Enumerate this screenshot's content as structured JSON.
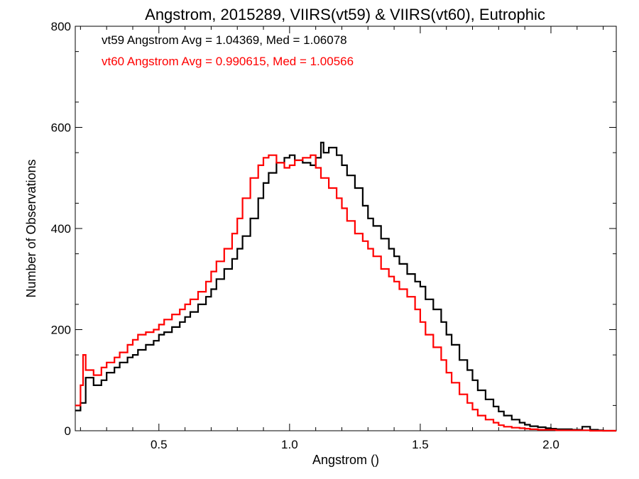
{
  "chart_data": {
    "type": "line",
    "title": "Angstrom, 2015289, VIIRS(vt59) & VIIRS(vt60), Eutrophic",
    "xlabel": "Angstrom ()",
    "ylabel": "Number of Observations",
    "xlim": [
      0.18,
      2.25
    ],
    "ylim": [
      0,
      800
    ],
    "xticks": [
      0.5,
      1.0,
      1.5,
      2.0
    ],
    "xtick_labels": [
      "0.5",
      "1.0",
      "1.5",
      "2.0"
    ],
    "yticks": [
      0,
      200,
      400,
      600,
      800
    ],
    "ytick_labels": [
      "0",
      "200",
      "400",
      "600",
      "800"
    ],
    "grid": false,
    "annotations": [
      {
        "text": "vt59 Angstrom Avg = 1.04369, Med = 1.06078",
        "color": "#000000"
      },
      {
        "text": "vt60 Angstrom Avg = 0.990615, Med = 1.00566",
        "color": "#ff0000"
      }
    ],
    "series": [
      {
        "color": "#000000",
        "x": [
          0.18,
          0.2,
          0.22,
          0.25,
          0.28,
          0.3,
          0.33,
          0.35,
          0.38,
          0.4,
          0.42,
          0.45,
          0.48,
          0.5,
          0.52,
          0.55,
          0.58,
          0.6,
          0.62,
          0.65,
          0.68,
          0.7,
          0.72,
          0.75,
          0.78,
          0.8,
          0.82,
          0.85,
          0.88,
          0.9,
          0.92,
          0.95,
          0.98,
          1.0,
          1.02,
          1.05,
          1.08,
          1.1,
          1.12,
          1.13,
          1.15,
          1.18,
          1.2,
          1.22,
          1.25,
          1.28,
          1.3,
          1.32,
          1.35,
          1.38,
          1.4,
          1.42,
          1.45,
          1.48,
          1.5,
          1.52,
          1.55,
          1.58,
          1.6,
          1.62,
          1.65,
          1.68,
          1.7,
          1.72,
          1.75,
          1.78,
          1.8,
          1.82,
          1.85,
          1.88,
          1.9,
          1.92,
          1.95,
          1.98,
          2.0,
          2.02,
          2.05,
          2.08,
          2.1,
          2.12,
          2.15,
          2.18,
          2.2,
          2.25
        ],
        "values": [
          40,
          55,
          105,
          90,
          100,
          115,
          125,
          135,
          145,
          150,
          160,
          170,
          178,
          190,
          195,
          205,
          215,
          225,
          235,
          250,
          265,
          280,
          300,
          320,
          340,
          360,
          385,
          420,
          460,
          490,
          510,
          530,
          540,
          545,
          535,
          530,
          525,
          540,
          570,
          550,
          560,
          545,
          525,
          505,
          480,
          445,
          420,
          405,
          380,
          360,
          345,
          330,
          310,
          295,
          285,
          260,
          240,
          215,
          190,
          170,
          140,
          120,
          100,
          80,
          62,
          48,
          38,
          30,
          22,
          16,
          12,
          9,
          7,
          5,
          4,
          3,
          3,
          2,
          2,
          8,
          2,
          1,
          0,
          0
        ]
      },
      {
        "color": "#ff0000",
        "x": [
          0.18,
          0.2,
          0.21,
          0.22,
          0.25,
          0.28,
          0.3,
          0.33,
          0.35,
          0.38,
          0.4,
          0.42,
          0.45,
          0.48,
          0.5,
          0.52,
          0.55,
          0.58,
          0.6,
          0.62,
          0.65,
          0.68,
          0.7,
          0.72,
          0.75,
          0.78,
          0.8,
          0.82,
          0.85,
          0.88,
          0.9,
          0.92,
          0.95,
          0.98,
          1.0,
          1.02,
          1.05,
          1.08,
          1.1,
          1.12,
          1.15,
          1.18,
          1.2,
          1.22,
          1.25,
          1.28,
          1.3,
          1.32,
          1.35,
          1.38,
          1.4,
          1.42,
          1.45,
          1.48,
          1.5,
          1.52,
          1.55,
          1.58,
          1.6,
          1.62,
          1.65,
          1.68,
          1.7,
          1.72,
          1.75,
          1.78,
          1.8,
          1.82,
          1.85,
          1.88,
          1.9,
          1.92,
          1.95,
          1.98,
          2.0,
          2.02,
          2.05,
          2.08,
          2.1,
          2.12,
          2.15,
          2.18,
          2.2,
          2.25
        ],
        "values": [
          50,
          90,
          150,
          120,
          110,
          125,
          135,
          145,
          155,
          170,
          180,
          190,
          195,
          200,
          210,
          220,
          230,
          240,
          250,
          260,
          275,
          295,
          315,
          335,
          360,
          390,
          420,
          460,
          500,
          525,
          540,
          545,
          530,
          520,
          525,
          535,
          540,
          545,
          520,
          500,
          480,
          460,
          440,
          415,
          390,
          375,
          360,
          345,
          320,
          305,
          295,
          280,
          265,
          240,
          215,
          190,
          165,
          140,
          115,
          95,
          72,
          55,
          42,
          30,
          22,
          16,
          11,
          8,
          6,
          5,
          4,
          3,
          2,
          2,
          2,
          1,
          1,
          1,
          1,
          1,
          0,
          0,
          0,
          0
        ]
      }
    ]
  }
}
